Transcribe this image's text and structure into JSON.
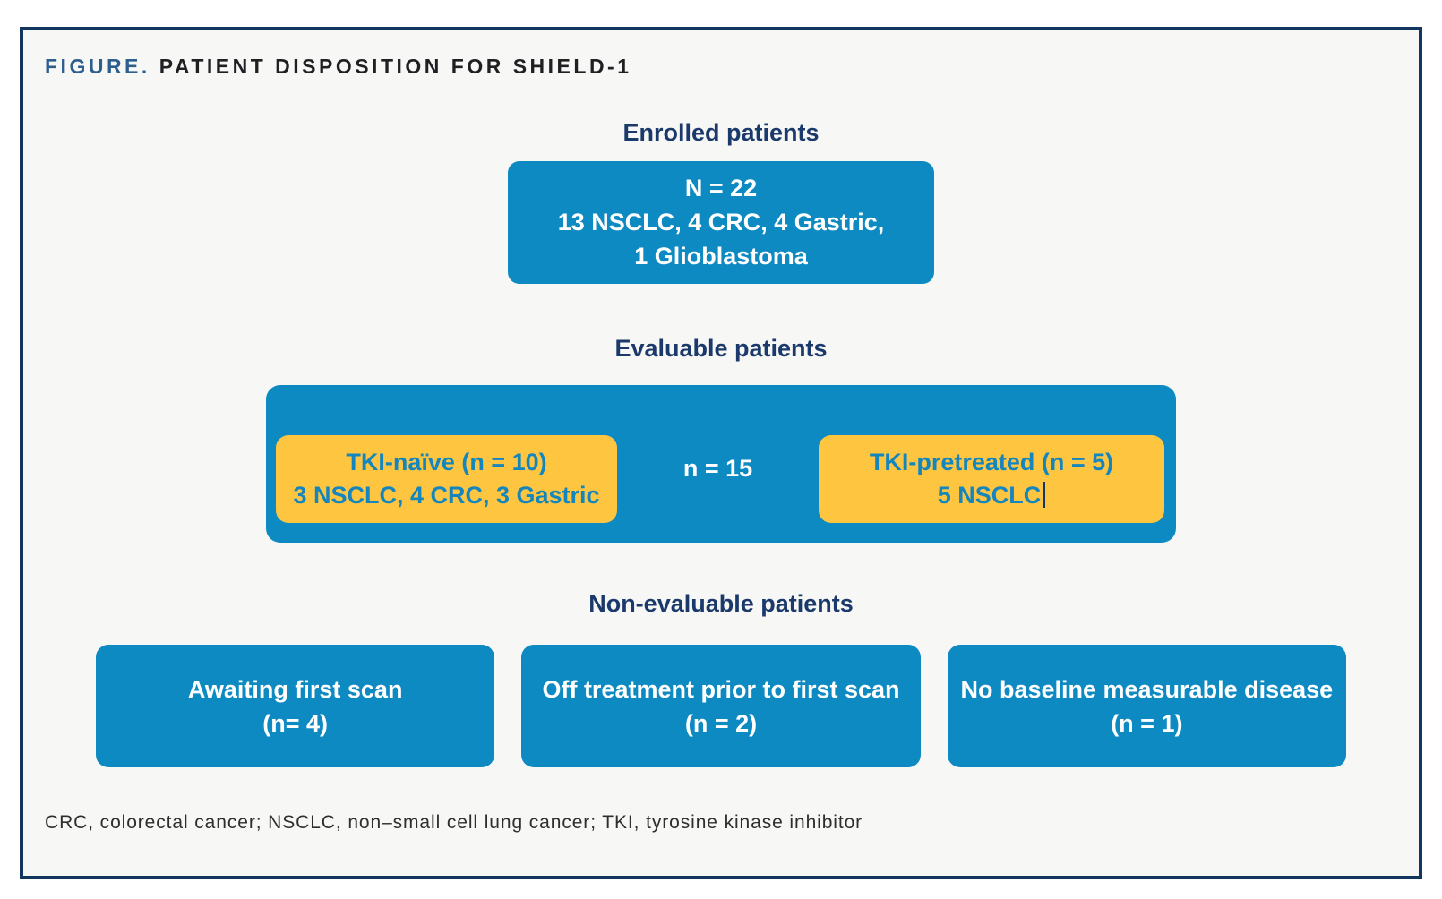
{
  "figure": {
    "title_label": "FIGURE.",
    "title_text": "PATIENT DISPOSITION FOR SHIELD-1",
    "enrolled": {
      "heading": "Enrolled patients",
      "lines": [
        "N = 22",
        "13 NSCLC, 4 CRC, 4 Gastric,",
        "1 Glioblastoma"
      ]
    },
    "evaluable": {
      "heading": "Evaluable patients",
      "count_label": "n = 15",
      "tki_naive": {
        "line1": "TKI-naïve (n = 10)",
        "line2": "3 NSCLC, 4 CRC, 3 Gastric"
      },
      "tki_pretreated": {
        "line1": "TKI-pretreated (n = 5)",
        "line2": "5 NSCLC"
      }
    },
    "non_evaluable": {
      "heading": "Non-evaluable patients",
      "boxes": [
        {
          "line1": "Awaiting first scan",
          "line2": "(n= 4)"
        },
        {
          "line1": "Off treatment prior to first scan",
          "line2": "(n = 2)"
        },
        {
          "line1": "No baseline measurable disease",
          "line2": "(n = 1)"
        }
      ]
    },
    "footnote": "CRC, colorectal cancer; NSCLC, non–small cell lung cancer; TKI, tyrosine kinase inhibitor",
    "colors": {
      "box_blue": "#0e8ac2",
      "accent_yellow": "#fec640",
      "heading_navy": "#1b3a6b",
      "border_navy": "#12365e",
      "title_blue": "#2d5f8e",
      "panel_background": "#f7f7f6"
    }
  }
}
